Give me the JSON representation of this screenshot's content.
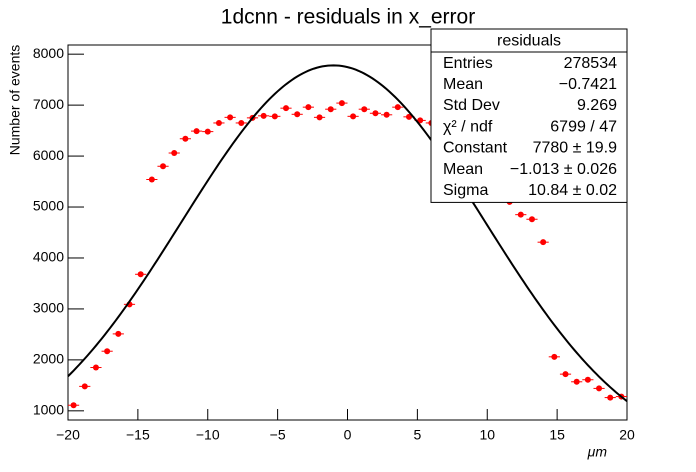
{
  "chart_data": {
    "type": "histogram-points",
    "title": "1dcnn - residuals in x_error",
    "x_label": "μm",
    "y_label": "Number of events",
    "color": "#ff0000",
    "x": [
      -19.6,
      -18.8,
      -18.0,
      -17.2,
      -16.4,
      -15.6,
      -14.8,
      -14.0,
      -13.2,
      -12.4,
      -11.6,
      -10.8,
      -10.0,
      -9.2,
      -8.4,
      -7.6,
      -6.8,
      -6.0,
      -5.2,
      -4.4,
      -3.6,
      -2.8,
      -2.0,
      -1.2,
      -0.4,
      0.4,
      1.2,
      2.0,
      2.8,
      3.6,
      4.4,
      5.2,
      6.0,
      6.8,
      7.6,
      8.4,
      9.2,
      10.0,
      10.8,
      11.6,
      12.4,
      13.2,
      14.0,
      14.8,
      15.6,
      16.4,
      17.2,
      18.0,
      18.8,
      19.6
    ],
    "values": [
      1110,
      1480,
      1850,
      2170,
      2510,
      3090,
      3680,
      5540,
      5800,
      6060,
      6340,
      6490,
      6480,
      6650,
      6760,
      6650,
      6750,
      6790,
      6780,
      6940,
      6820,
      6960,
      6760,
      6920,
      7040,
      6780,
      6920,
      6840,
      6810,
      6960,
      6770,
      6700,
      6650,
      6500,
      6300,
      6050,
      5800,
      5500,
      5350,
      5100,
      4850,
      4760,
      4310,
      2060,
      1720,
      1570,
      1610,
      1440,
      1260,
      1280
    ],
    "fit": {
      "color": "#000000",
      "constant": 7780,
      "mean": -1.013,
      "sigma": 10.84
    },
    "xlim": [
      -20,
      20
    ],
    "ylim": [
      820,
      8180
    ],
    "xticks": [
      {
        "value": -20,
        "label": "−20"
      },
      {
        "value": -15,
        "label": "−15"
      },
      {
        "value": -10,
        "label": "−10"
      },
      {
        "value": -5,
        "label": "−5"
      },
      0,
      5,
      10,
      15,
      20
    ],
    "yticks": [
      1000,
      2000,
      3000,
      4000,
      5000,
      6000,
      7000,
      8000
    ],
    "stats": {
      "title": "residuals",
      "rows": [
        [
          "Entries",
          "278534"
        ],
        [
          "Mean",
          "−0.7421"
        ],
        [
          "Std Dev",
          "9.269"
        ],
        [
          "χ² / ndf",
          "6799 / 47"
        ],
        [
          "Constant",
          "7780 ± 19.9"
        ],
        [
          "Mean",
          "−1.013 ± 0.026"
        ],
        [
          "Sigma",
          "10.84 ± 0.02"
        ]
      ]
    }
  }
}
